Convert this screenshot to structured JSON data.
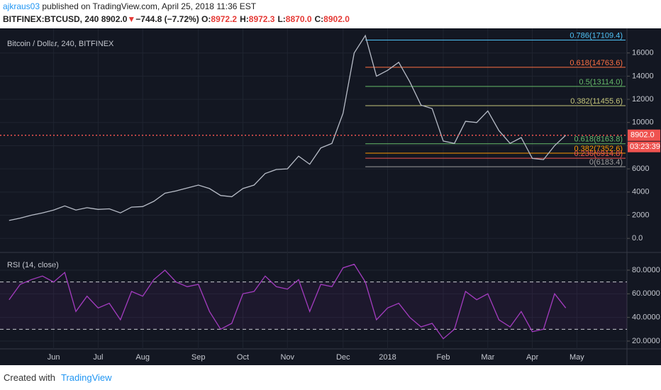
{
  "header": {
    "user": "ajkraus03",
    "published": "published on TradingView.com, April 25, 2018 11:36 EST",
    "symbol": "BITFINEX:BTCUSD, 240",
    "last": "8902.0",
    "arrow": "▼",
    "change": "−744.8 (−7.72%)",
    "quote": [
      {
        "label": "O:",
        "value": "8972.2"
      },
      {
        "label": "H:",
        "value": "8972.3"
      },
      {
        "label": "L:",
        "value": "8870.0"
      },
      {
        "label": "C:",
        "value": "8902.0"
      }
    ]
  },
  "chart_data": [
    {
      "type": "line",
      "title": "Bitcoin / Dollar, 240, BITFINEX",
      "categories": [
        null,
        null,
        null,
        null,
        "Jun",
        null,
        null,
        null,
        "Jul",
        null,
        null,
        null,
        "Aug",
        null,
        null,
        null,
        null,
        "Sep",
        null,
        null,
        null,
        "Oct",
        null,
        null,
        null,
        "Nov",
        null,
        null,
        null,
        null,
        "Dec",
        null,
        null,
        null,
        "2018",
        null,
        null,
        null,
        null,
        "Feb",
        null,
        null,
        null,
        "Mar",
        null,
        null,
        null,
        "Apr",
        null,
        null,
        null,
        "May",
        null,
        null,
        null,
        null
      ],
      "series": [
        {
          "name": "BTCUSD",
          "color": "#b7bcc7",
          "values": [
            1550,
            1750,
            2000,
            2200,
            2450,
            2800,
            2450,
            2650,
            2500,
            2550,
            2200,
            2700,
            2750,
            3200,
            3900,
            4100,
            4350,
            4600,
            4300,
            3700,
            3600,
            4300,
            4600,
            5600,
            5950,
            6000,
            7100,
            6400,
            7800,
            8200,
            10800,
            16000,
            17500,
            14000,
            14500,
            15200,
            13500,
            11500,
            11200,
            8400,
            8200,
            10100,
            10000,
            11000,
            9300,
            8200,
            8700,
            6900,
            6800,
            8000,
            8902,
            null,
            null,
            null,
            null,
            null
          ]
        }
      ],
      "ylim": [
        -1150,
        18000
      ],
      "yticks": [
        {
          "value": 0,
          "label": "0.0"
        },
        2000,
        4000,
        6000,
        8000,
        10000,
        12000,
        14000,
        16000
      ],
      "grid": true,
      "fib_levels": [
        {
          "label": "0.786(17109.4)",
          "value": 17109.4,
          "color": "#4fc3f7"
        },
        {
          "label": "0.618(14763.6)",
          "value": 14763.6,
          "color": "#ff7043"
        },
        {
          "label": "0.5(13114.0)",
          "value": 13114.0,
          "color": "#66bb6a"
        },
        {
          "label": "0.382(11455.6)",
          "value": 11455.6,
          "color": "#c6c67a"
        },
        {
          "label": "0.618(8163.8)",
          "value": 8163.8,
          "color": "#66bb6a"
        },
        {
          "label": "0.382(7352.6)",
          "value": 7352.6,
          "color": "#ff9800"
        },
        {
          "label": "0.236(6914.8)",
          "value": 6914.8,
          "color": "#ef5350"
        },
        {
          "label": "0(6183.4)",
          "value": 6183.4,
          "color": "#9e9e9e"
        }
      ],
      "last_price": {
        "value": 8902.0,
        "label": "8902.0",
        "color": "#ef5350"
      },
      "countdown": "03:23:39"
    },
    {
      "type": "line",
      "title": "RSI (14, close)",
      "series": [
        {
          "name": "RSI",
          "color": "#a43cc0",
          "values": [
            55,
            68,
            72,
            75,
            70,
            78,
            45,
            58,
            48,
            52,
            38,
            62,
            58,
            72,
            80,
            70,
            66,
            68,
            45,
            30,
            35,
            60,
            62,
            75,
            66,
            64,
            72,
            45,
            68,
            66,
            82,
            85,
            70,
            38,
            48,
            52,
            40,
            32,
            35,
            22,
            30,
            62,
            55,
            60,
            38,
            32,
            45,
            28,
            30,
            60,
            48,
            null,
            null,
            null,
            null,
            null
          ]
        }
      ],
      "ylim": [
        14.6,
        94.4
      ],
      "yticks": [
        {
          "value": 20,
          "label": "20.0000"
        },
        {
          "value": 40,
          "label": "40.0000"
        },
        {
          "value": 60,
          "label": "60.0000"
        },
        {
          "value": 80,
          "label": "80.0000"
        }
      ],
      "bands": [
        70,
        30
      ],
      "grid": true
    }
  ],
  "footer": {
    "created": "Created with",
    "brand": "TradingView"
  }
}
